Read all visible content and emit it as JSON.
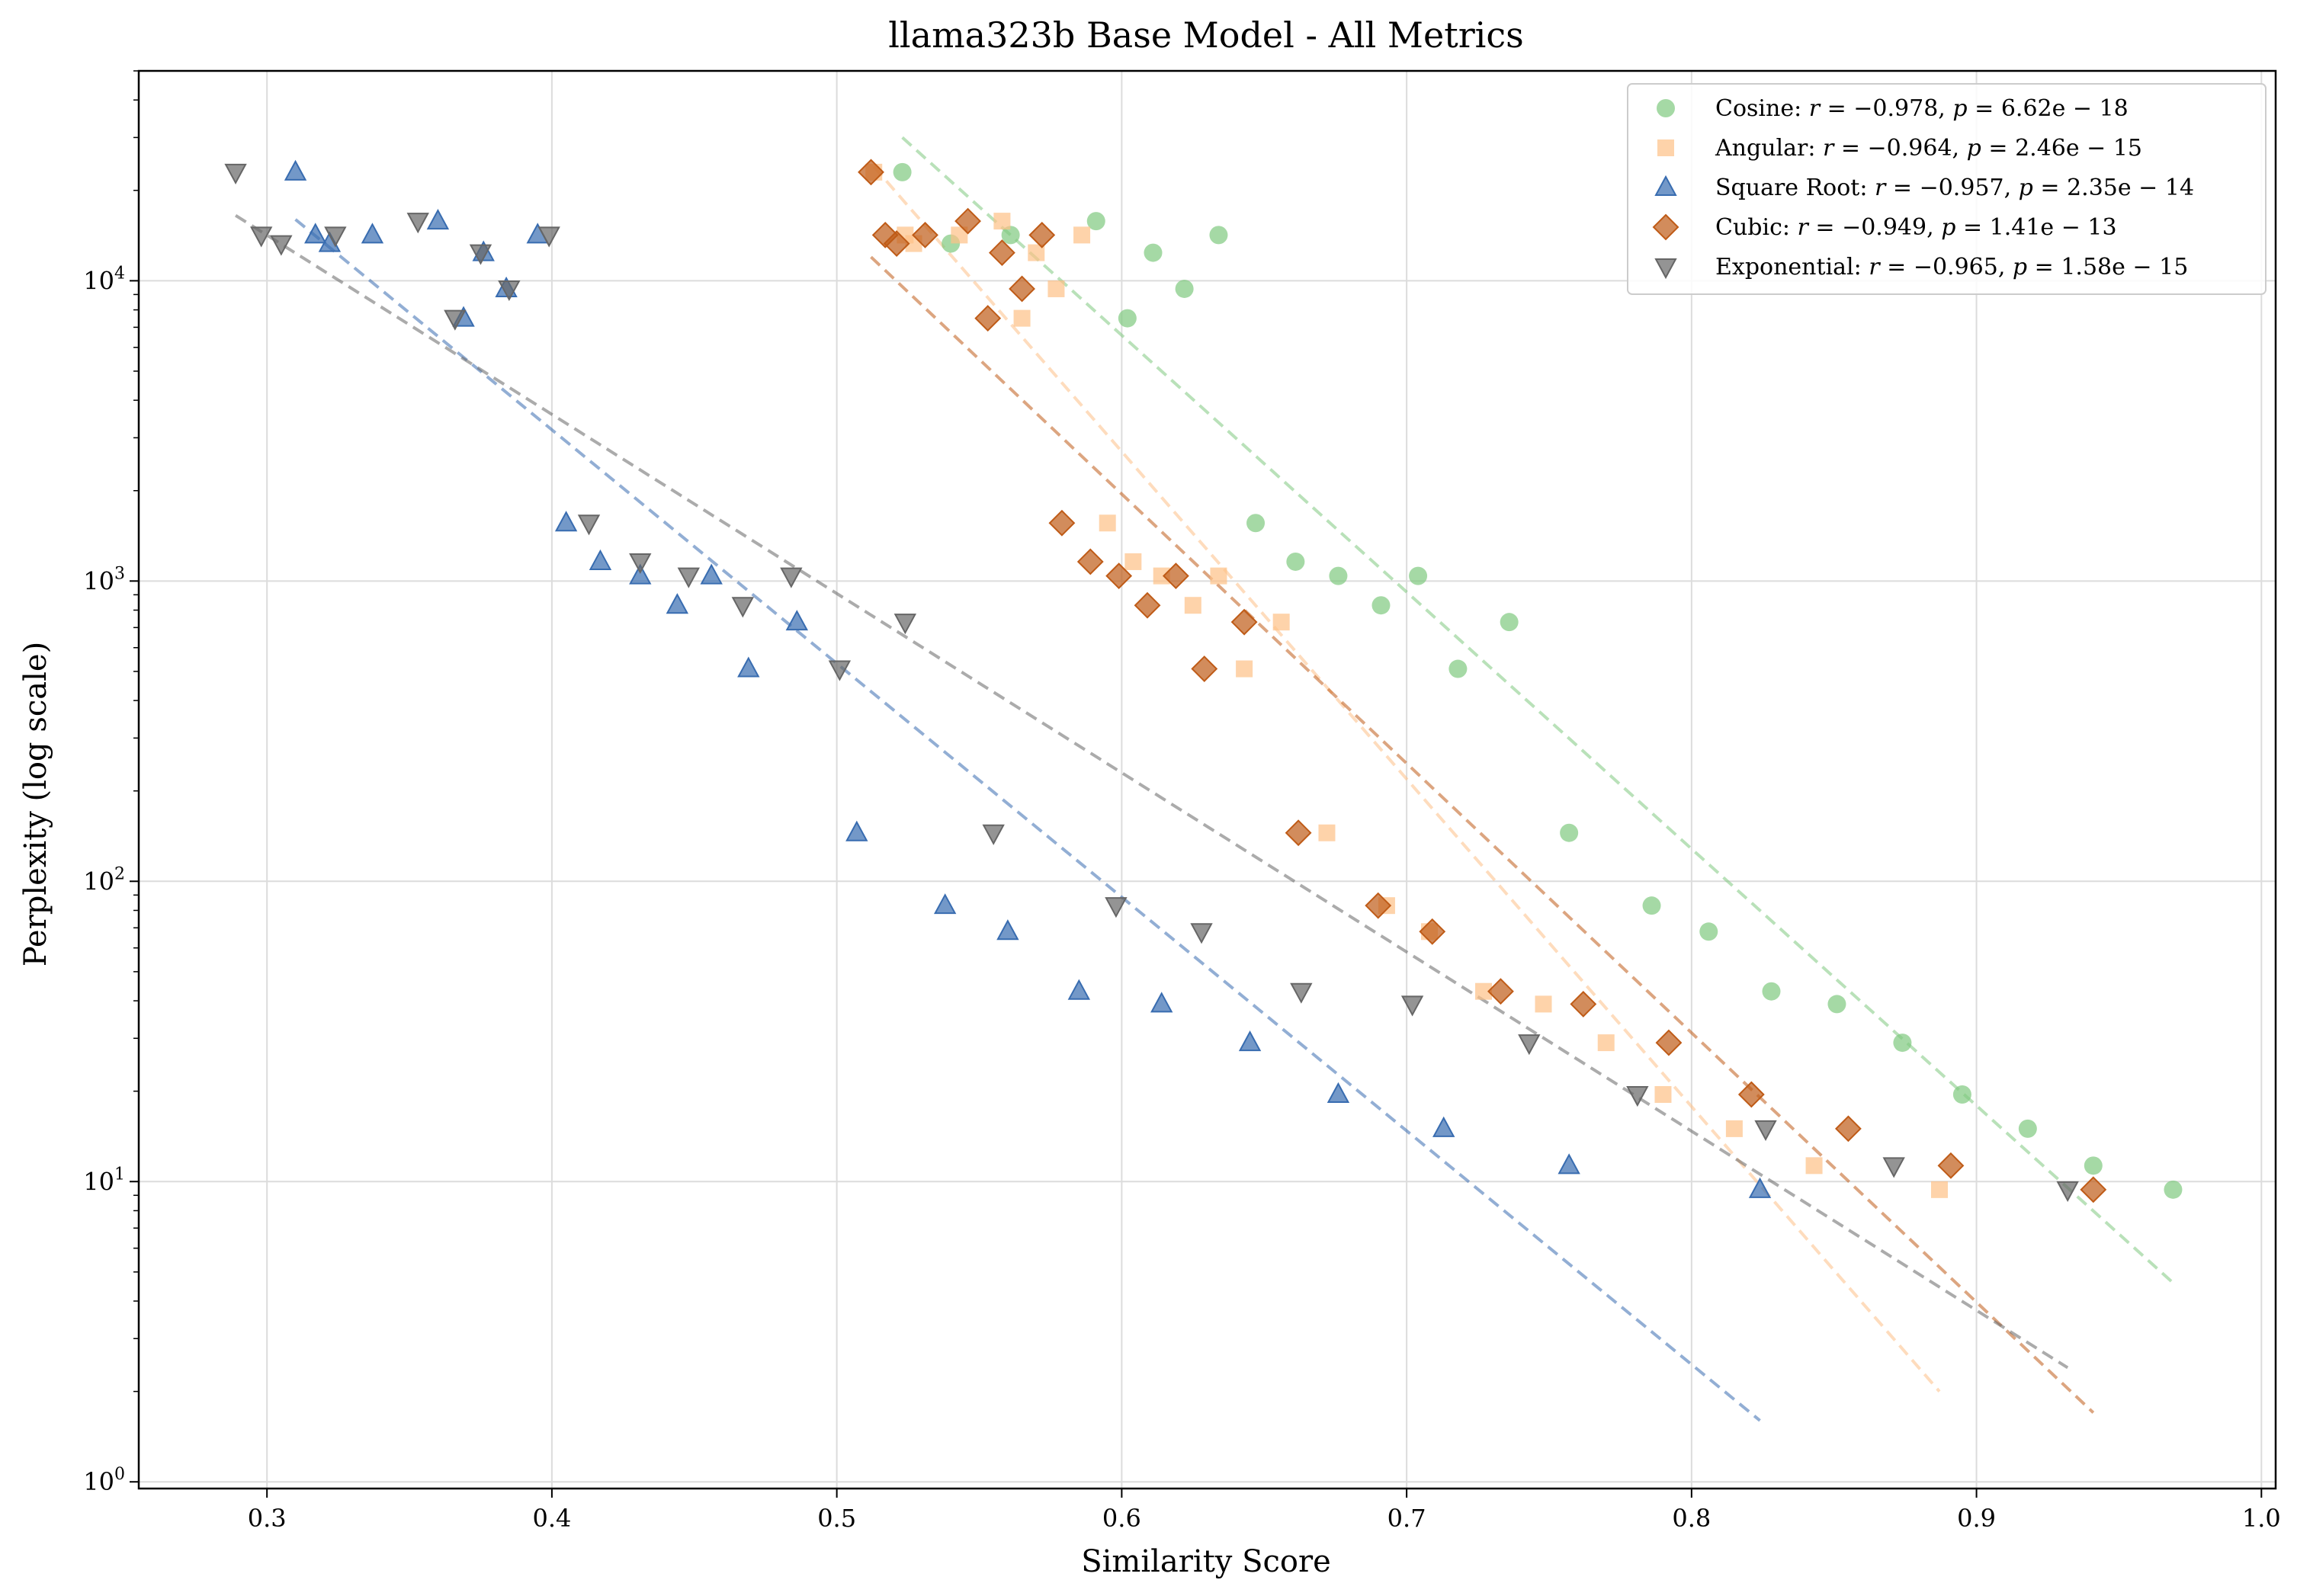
{
  "chart_data": {
    "type": "scatter",
    "title": "llama323b Base Model - All Metrics",
    "xlabel": "Similarity Score",
    "ylabel": "Perplexity (log scale)",
    "xlim": [
      0.255,
      1.005
    ],
    "ylim": [
      0.95,
      50000
    ],
    "yscale": "log",
    "grid": true,
    "legend_position": "top-right",
    "xticks": [
      {
        "value": 0.3,
        "label": "0.3"
      },
      {
        "value": 0.4,
        "label": "0.4"
      },
      {
        "value": 0.5,
        "label": "0.5"
      },
      {
        "value": 0.6,
        "label": "0.6"
      },
      {
        "value": 0.7,
        "label": "0.7"
      },
      {
        "value": 0.8,
        "label": "0.8"
      },
      {
        "value": 0.9,
        "label": "0.9"
      },
      {
        "value": 1.0,
        "label": "1.0"
      }
    ],
    "yticks": [
      {
        "value": 1,
        "base": "10",
        "exp": "0"
      },
      {
        "value": 10,
        "base": "10",
        "exp": "1"
      },
      {
        "value": 100,
        "base": "10",
        "exp": "2"
      },
      {
        "value": 1000,
        "base": "10",
        "exp": "3"
      },
      {
        "value": 10000,
        "base": "10",
        "exp": "4"
      }
    ],
    "series": [
      {
        "name": "Cosine",
        "stats": {
          "r": "−0.978",
          "p": "6.62e − 18"
        },
        "color": "#7fc97f",
        "marker": "circle",
        "points": [
          [
            0.523,
            23000
          ],
          [
            0.54,
            13300
          ],
          [
            0.561,
            14200
          ],
          [
            0.591,
            15800
          ],
          [
            0.602,
            7500
          ],
          [
            0.611,
            12400
          ],
          [
            0.622,
            9400
          ],
          [
            0.634,
            14200
          ],
          [
            0.647,
            1560
          ],
          [
            0.661,
            1160
          ],
          [
            0.676,
            1040
          ],
          [
            0.691,
            830
          ],
          [
            0.704,
            1040
          ],
          [
            0.718,
            510
          ],
          [
            0.736,
            730
          ],
          [
            0.757,
            145
          ],
          [
            0.786,
            83
          ],
          [
            0.806,
            68
          ],
          [
            0.828,
            43
          ],
          [
            0.851,
            39
          ],
          [
            0.874,
            29
          ],
          [
            0.895,
            19.5
          ],
          [
            0.918,
            15
          ],
          [
            0.941,
            11.3
          ],
          [
            0.969,
            9.4
          ]
        ],
        "trend": [
          [
            0.523,
            30000
          ],
          [
            0.969,
            4.6
          ]
        ]
      },
      {
        "name": "Angular",
        "stats": {
          "r": "−0.964",
          "p": "2.46e − 15"
        },
        "color": "#fdc086",
        "marker": "square",
        "points": [
          [
            0.513,
            23000
          ],
          [
            0.524,
            14200
          ],
          [
            0.527,
            13300
          ],
          [
            0.543,
            14200
          ],
          [
            0.558,
            15800
          ],
          [
            0.565,
            7500
          ],
          [
            0.57,
            12400
          ],
          [
            0.577,
            9400
          ],
          [
            0.586,
            14200
          ],
          [
            0.595,
            1560
          ],
          [
            0.604,
            1160
          ],
          [
            0.614,
            1040
          ],
          [
            0.625,
            830
          ],
          [
            0.634,
            1040
          ],
          [
            0.643,
            510
          ],
          [
            0.656,
            730
          ],
          [
            0.672,
            145
          ],
          [
            0.693,
            83
          ],
          [
            0.708,
            68
          ],
          [
            0.727,
            43
          ],
          [
            0.748,
            39
          ],
          [
            0.77,
            29
          ],
          [
            0.79,
            19.5
          ],
          [
            0.815,
            15
          ],
          [
            0.843,
            11.3
          ],
          [
            0.887,
            9.4
          ]
        ],
        "trend": [
          [
            0.513,
            24000
          ],
          [
            0.887,
            2.0
          ]
        ]
      },
      {
        "name": "Square Root",
        "stats": {
          "r": "−0.957",
          "p": "2.35e − 14"
        },
        "color": "#386cb0",
        "marker": "triangle-up",
        "points": [
          [
            0.31,
            23000
          ],
          [
            0.317,
            14200
          ],
          [
            0.322,
            13300
          ],
          [
            0.337,
            14200
          ],
          [
            0.36,
            15800
          ],
          [
            0.369,
            7500
          ],
          [
            0.376,
            12400
          ],
          [
            0.384,
            9400
          ],
          [
            0.395,
            14200
          ],
          [
            0.405,
            1560
          ],
          [
            0.417,
            1160
          ],
          [
            0.431,
            1040
          ],
          [
            0.444,
            830
          ],
          [
            0.456,
            1040
          ],
          [
            0.469,
            510
          ],
          [
            0.486,
            730
          ],
          [
            0.507,
            145
          ],
          [
            0.538,
            83
          ],
          [
            0.56,
            68
          ],
          [
            0.585,
            43
          ],
          [
            0.614,
            39
          ],
          [
            0.645,
            29
          ],
          [
            0.676,
            19.5
          ],
          [
            0.713,
            15
          ],
          [
            0.757,
            11.3
          ],
          [
            0.824,
            9.4
          ]
        ],
        "trend": [
          [
            0.31,
            16000
          ],
          [
            0.824,
            1.6
          ]
        ]
      },
      {
        "name": "Cubic",
        "stats": {
          "r": "−0.949",
          "p": "1.41e − 13"
        },
        "color": "#bf5b17",
        "marker": "diamond",
        "points": [
          [
            0.512,
            23000
          ],
          [
            0.517,
            14200
          ],
          [
            0.521,
            13300
          ],
          [
            0.531,
            14200
          ],
          [
            0.546,
            15800
          ],
          [
            0.553,
            7500
          ],
          [
            0.558,
            12400
          ],
          [
            0.565,
            9400
          ],
          [
            0.572,
            14200
          ],
          [
            0.579,
            1560
          ],
          [
            0.589,
            1160
          ],
          [
            0.599,
            1040
          ],
          [
            0.609,
            830
          ],
          [
            0.619,
            1040
          ],
          [
            0.629,
            510
          ],
          [
            0.643,
            730
          ],
          [
            0.662,
            145
          ],
          [
            0.69,
            83
          ],
          [
            0.709,
            68
          ],
          [
            0.733,
            43
          ],
          [
            0.762,
            39
          ],
          [
            0.792,
            29
          ],
          [
            0.821,
            19.5
          ],
          [
            0.855,
            15
          ],
          [
            0.891,
            11.3
          ],
          [
            0.941,
            9.4
          ]
        ],
        "trend": [
          [
            0.512,
            12000
          ],
          [
            0.941,
            1.7
          ]
        ]
      },
      {
        "name": "Exponential",
        "stats": {
          "r": "−0.965",
          "p": "1.58e − 15"
        },
        "color": "#666666",
        "marker": "triangle-down",
        "points": [
          [
            0.289,
            23000
          ],
          [
            0.298,
            14200
          ],
          [
            0.305,
            13300
          ],
          [
            0.324,
            14200
          ],
          [
            0.353,
            15800
          ],
          [
            0.366,
            7500
          ],
          [
            0.375,
            12400
          ],
          [
            0.385,
            9400
          ],
          [
            0.399,
            14200
          ],
          [
            0.413,
            1560
          ],
          [
            0.431,
            1160
          ],
          [
            0.448,
            1040
          ],
          [
            0.467,
            830
          ],
          [
            0.484,
            1040
          ],
          [
            0.501,
            510
          ],
          [
            0.524,
            730
          ],
          [
            0.555,
            145
          ],
          [
            0.598,
            83
          ],
          [
            0.628,
            68
          ],
          [
            0.663,
            43
          ],
          [
            0.702,
            39
          ],
          [
            0.743,
            29
          ],
          [
            0.781,
            19.5
          ],
          [
            0.826,
            15
          ],
          [
            0.871,
            11.3
          ],
          [
            0.932,
            9.4
          ]
        ],
        "trend": [
          [
            0.289,
            16500
          ],
          [
            0.932,
            2.4
          ]
        ]
      }
    ]
  }
}
